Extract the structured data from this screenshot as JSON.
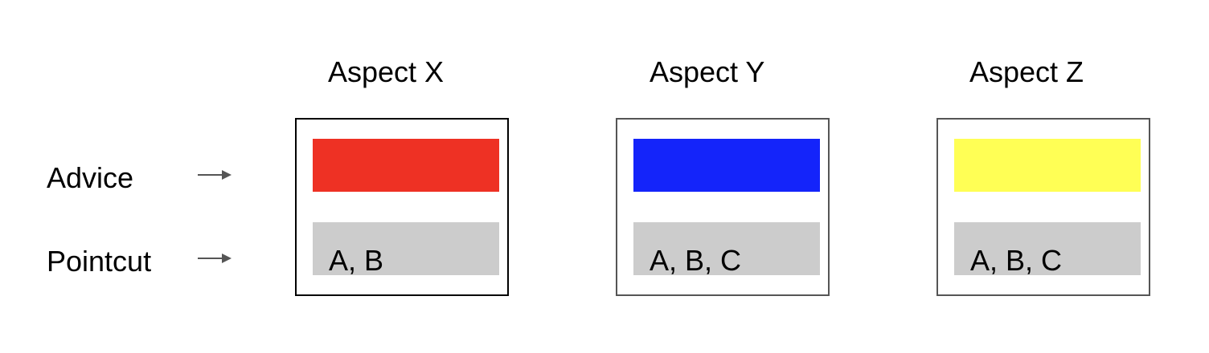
{
  "rows": {
    "advice_label": "Advice",
    "pointcut_label": "Pointcut"
  },
  "aspects": [
    {
      "title": "Aspect X",
      "advice_color": "#ee3124",
      "pointcut": "A, B",
      "border_color": "#000000"
    },
    {
      "title": "Aspect Y",
      "advice_color": "#1424fa",
      "pointcut": "A, B, C",
      "border_color": "#555555"
    },
    {
      "title": "Aspect Z",
      "advice_color": "#ffff55",
      "pointcut": "A, B, C",
      "border_color": "#555555"
    }
  ]
}
